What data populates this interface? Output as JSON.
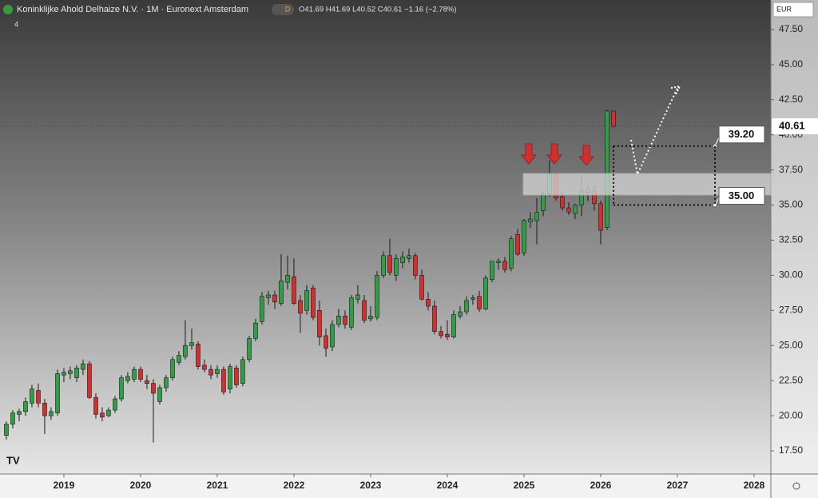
{
  "chart_data": {
    "type": "candlestick",
    "title": "Koninklijke Ahold Delhaize N.V. · 1M · Euronext Amsterdam",
    "interval_badge": "D",
    "ohlc_readout": "O41.69 H41.69 L40.52 C40.61 −1.16 (−2.78%)",
    "indicator_count": "4",
    "currency": "EUR",
    "last_price": 40.61,
    "colors": {
      "up": "#2f9e44",
      "down": "#d32f2f"
    },
    "xlim": [
      2018.167,
      2028.219
    ],
    "xticks": [
      2019,
      2020,
      2021,
      2022,
      2023,
      2024,
      2025,
      2026,
      2027,
      2028
    ],
    "ylim": [
      15.85,
      49.6
    ],
    "yticks": [
      {
        "value": 17.5,
        "label": "17.50"
      },
      {
        "value": 20,
        "label": "20.00"
      },
      {
        "value": 22.5,
        "label": "22.50"
      },
      {
        "value": 25,
        "label": "25.00"
      },
      {
        "value": 27.5,
        "label": "27.50"
      },
      {
        "value": 30,
        "label": "30.00"
      },
      {
        "value": 32.5,
        "label": "32.50"
      },
      {
        "value": 35,
        "label": "35.00"
      },
      {
        "value": 37.5,
        "label": "37.50"
      },
      {
        "value": 40,
        "label": "40.00"
      },
      {
        "value": 42.5,
        "label": "42.50"
      },
      {
        "value": 45,
        "label": "45.00"
      },
      {
        "value": 47.5,
        "label": "47.50"
      }
    ],
    "levels": [
      {
        "value": 39.2,
        "label": "39.20"
      },
      {
        "value": 35,
        "label": "35.00"
      }
    ],
    "x": [
      2018.25,
      2018.333,
      2018.417,
      2018.5,
      2018.583,
      2018.667,
      2018.75,
      2018.833,
      2018.917,
      2019,
      2019.083,
      2019.167,
      2019.25,
      2019.333,
      2019.417,
      2019.5,
      2019.583,
      2019.667,
      2019.75,
      2019.833,
      2019.917,
      2020,
      2020.083,
      2020.167,
      2020.25,
      2020.333,
      2020.417,
      2020.5,
      2020.583,
      2020.667,
      2020.75,
      2020.833,
      2020.917,
      2021,
      2021.083,
      2021.167,
      2021.25,
      2021.333,
      2021.417,
      2021.5,
      2021.583,
      2021.667,
      2021.75,
      2021.833,
      2021.917,
      2022,
      2022.083,
      2022.167,
      2022.25,
      2022.333,
      2022.417,
      2022.5,
      2022.583,
      2022.667,
      2022.75,
      2022.833,
      2022.917,
      2023,
      2023.083,
      2023.167,
      2023.25,
      2023.333,
      2023.417,
      2023.5,
      2023.583,
      2023.667,
      2023.75,
      2023.833,
      2023.917,
      2024,
      2024.083,
      2024.167,
      2024.25,
      2024.333,
      2024.417,
      2024.5,
      2024.583,
      2024.667,
      2024.75,
      2024.833,
      2024.917,
      2025,
      2025.083,
      2025.167,
      2025.25,
      2025.333,
      2025.417,
      2025.5,
      2025.583,
      2025.667,
      2025.75,
      2025.833,
      2025.917,
      2026,
      2026.083,
      2026.167
    ],
    "candles": [
      [
        18.6,
        19.6,
        18.3,
        19.4
      ],
      [
        19.4,
        20.4,
        19.1,
        20.2
      ],
      [
        20.1,
        20.5,
        19.6,
        20.3
      ],
      [
        20.3,
        21.3,
        20.0,
        21.0
      ],
      [
        20.9,
        22.2,
        20.6,
        21.9
      ],
      [
        21.8,
        22.3,
        20.6,
        20.9
      ],
      [
        20.9,
        21.2,
        18.7,
        20.0
      ],
      [
        20.0,
        20.6,
        19.7,
        20.3
      ],
      [
        20.2,
        23.3,
        20.0,
        23.0
      ],
      [
        22.9,
        23.4,
        22.4,
        23.1
      ],
      [
        23.0,
        23.5,
        22.6,
        23.2
      ],
      [
        22.7,
        23.6,
        22.4,
        23.4
      ],
      [
        23.3,
        24.0,
        22.9,
        23.7
      ],
      [
        23.7,
        23.9,
        21.2,
        21.3
      ],
      [
        21.3,
        21.6,
        19.8,
        20.1
      ],
      [
        20.2,
        20.6,
        19.6,
        19.9
      ],
      [
        20.0,
        20.6,
        19.9,
        20.4
      ],
      [
        20.4,
        21.4,
        20.2,
        21.2
      ],
      [
        21.2,
        22.9,
        21.0,
        22.7
      ],
      [
        22.5,
        23.1,
        22.3,
        22.8
      ],
      [
        22.6,
        23.5,
        22.4,
        23.3
      ],
      [
        23.3,
        23.5,
        22.4,
        22.6
      ],
      [
        22.5,
        22.9,
        21.9,
        22.3
      ],
      [
        22.3,
        22.6,
        18.1,
        21.6
      ],
      [
        21.0,
        22.2,
        20.8,
        22.0
      ],
      [
        22.0,
        22.9,
        21.7,
        22.7
      ],
      [
        22.7,
        24.2,
        22.5,
        24.0
      ],
      [
        23.8,
        24.6,
        23.6,
        24.3
      ],
      [
        24.2,
        26.8,
        24.0,
        25.0
      ],
      [
        25.0,
        26.2,
        24.7,
        25.2
      ],
      [
        25.1,
        25.3,
        23.3,
        23.5
      ],
      [
        23.6,
        24.0,
        23.1,
        23.3
      ],
      [
        23.3,
        23.6,
        22.6,
        22.9
      ],
      [
        23.0,
        23.6,
        22.7,
        23.3
      ],
      [
        23.3,
        23.5,
        21.5,
        21.7
      ],
      [
        21.9,
        23.7,
        21.6,
        23.5
      ],
      [
        23.4,
        23.6,
        22.0,
        22.2
      ],
      [
        22.3,
        24.2,
        22.1,
        24.0
      ],
      [
        24.0,
        25.7,
        23.8,
        25.5
      ],
      [
        25.5,
        26.9,
        25.3,
        26.6
      ],
      [
        26.7,
        28.8,
        26.5,
        28.5
      ],
      [
        28.4,
        28.9,
        27.9,
        28.6
      ],
      [
        28.6,
        28.9,
        27.6,
        28.1
      ],
      [
        28.0,
        31.5,
        27.8,
        29.6
      ],
      [
        29.5,
        31.4,
        29.0,
        30.0
      ],
      [
        29.9,
        31.2,
        27.9,
        28.0
      ],
      [
        28.2,
        28.6,
        25.9,
        27.3
      ],
      [
        27.5,
        29.3,
        27.2,
        28.9
      ],
      [
        29.1,
        29.3,
        26.8,
        27.0
      ],
      [
        27.5,
        28.2,
        25.0,
        25.6
      ],
      [
        25.7,
        26.2,
        24.2,
        24.8
      ],
      [
        24.9,
        26.8,
        24.6,
        26.5
      ],
      [
        26.5,
        27.6,
        26.3,
        27.1
      ],
      [
        27.1,
        27.5,
        26.2,
        26.5
      ],
      [
        26.3,
        28.6,
        26.1,
        28.4
      ],
      [
        28.3,
        29.3,
        28.0,
        28.6
      ],
      [
        28.2,
        28.6,
        26.6,
        26.8
      ],
      [
        26.9,
        27.8,
        26.7,
        27.1
      ],
      [
        27.0,
        30.3,
        26.8,
        30.0
      ],
      [
        30.0,
        31.7,
        29.8,
        31.4
      ],
      [
        31.4,
        32.6,
        30.0,
        30.2
      ],
      [
        30.0,
        31.5,
        29.6,
        31.2
      ],
      [
        30.9,
        31.7,
        30.5,
        31.3
      ],
      [
        31.2,
        31.9,
        30.9,
        31.4
      ],
      [
        31.4,
        31.6,
        29.7,
        30.0
      ],
      [
        30.0,
        30.4,
        28.2,
        28.3
      ],
      [
        28.3,
        28.8,
        27.5,
        27.8
      ],
      [
        27.8,
        28.2,
        25.8,
        26.0
      ],
      [
        26.0,
        26.4,
        25.5,
        25.7
      ],
      [
        25.8,
        26.8,
        25.4,
        25.6
      ],
      [
        25.6,
        27.5,
        25.5,
        27.2
      ],
      [
        27.1,
        27.8,
        26.9,
        27.4
      ],
      [
        27.4,
        28.5,
        27.2,
        28.2
      ],
      [
        28.3,
        28.6,
        27.9,
        28.4
      ],
      [
        28.5,
        28.9,
        27.4,
        27.6
      ],
      [
        27.6,
        30.0,
        27.5,
        29.8
      ],
      [
        29.7,
        31.0,
        29.5,
        31.0
      ],
      [
        30.9,
        31.2,
        30.4,
        31.0
      ],
      [
        31.0,
        31.3,
        30.2,
        30.4
      ],
      [
        30.5,
        32.8,
        30.3,
        32.6
      ],
      [
        32.9,
        33.3,
        31.4,
        31.5
      ],
      [
        31.6,
        34.0,
        31.4,
        33.9
      ],
      [
        33.8,
        34.5,
        33.4,
        34.0
      ],
      [
        33.9,
        35.5,
        32.2,
        34.5
      ],
      [
        34.6,
        36.0,
        34.2,
        35.8
      ],
      [
        35.8,
        38.2,
        35.6,
        37.2
      ],
      [
        37.2,
        37.3,
        35.3,
        35.5
      ],
      [
        35.6,
        36.0,
        34.6,
        34.8
      ],
      [
        34.8,
        35.2,
        34.3,
        34.5
      ],
      [
        34.4,
        35.1,
        34.0,
        35.0
      ],
      [
        35.0,
        37.2,
        34.2,
        36.0
      ],
      [
        35.9,
        36.4,
        35.3,
        36.1
      ],
      [
        36.0,
        36.4,
        34.6,
        35.1
      ],
      [
        35.1,
        35.3,
        32.2,
        33.2
      ],
      [
        33.4,
        41.8,
        33.2,
        41.7
      ],
      [
        41.69,
        41.69,
        40.52,
        40.61
      ]
    ]
  }
}
